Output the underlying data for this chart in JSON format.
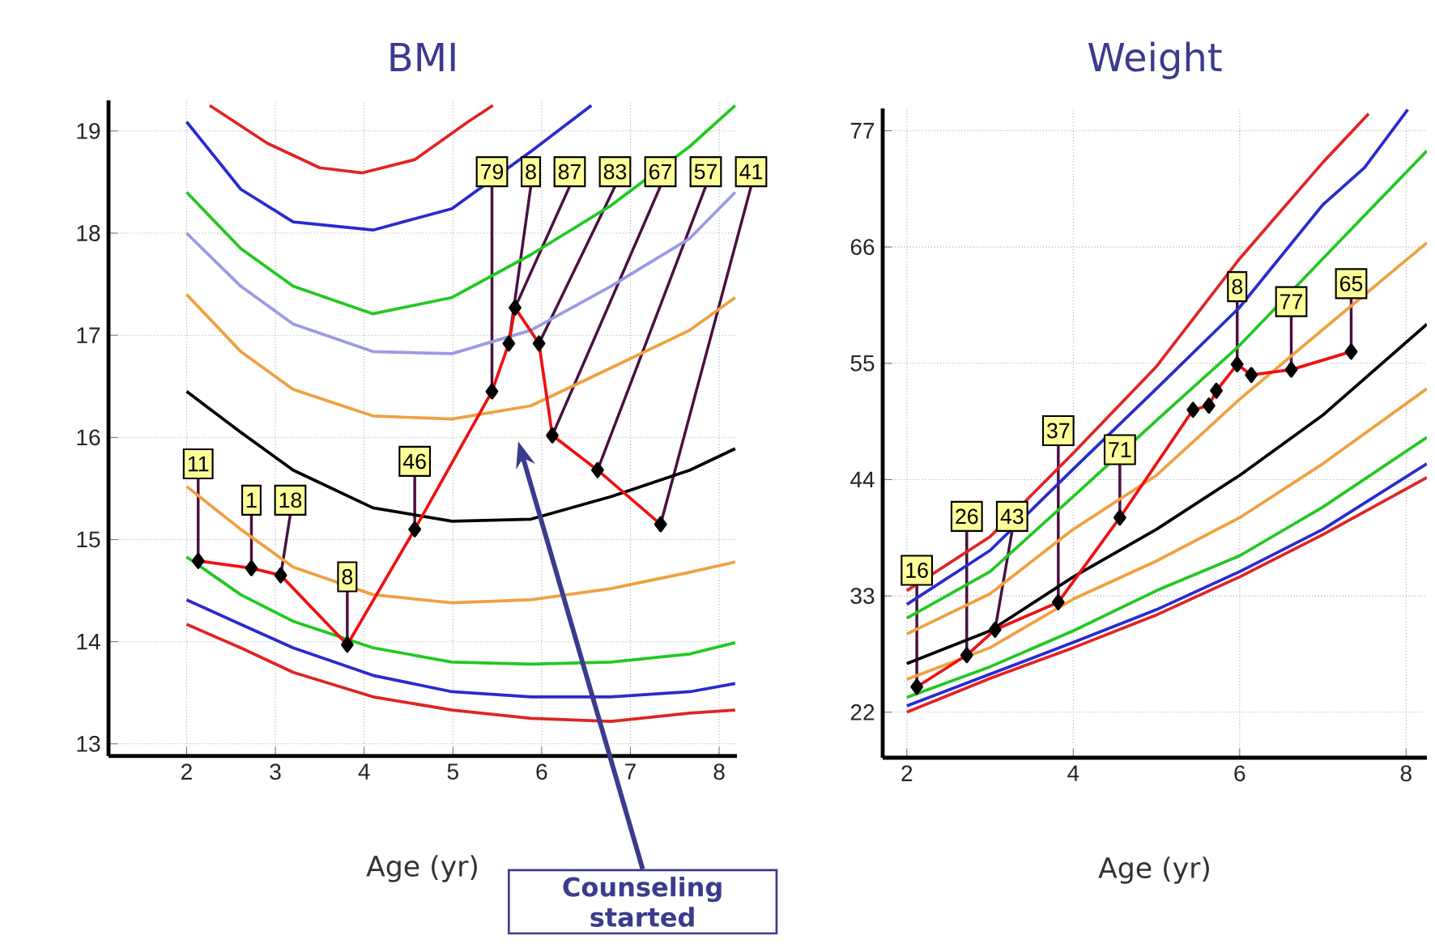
{
  "chart_data": [
    {
      "type": "line",
      "title": "BMI",
      "xlabel": "Age (yr)",
      "xlim": [
        1.12,
        8.2
      ],
      "ylim": [
        12.88,
        19.3
      ],
      "xticks": [
        2,
        3,
        4,
        5,
        6,
        7,
        8
      ],
      "yticks": [
        13,
        14,
        15,
        16,
        17,
        18,
        19
      ],
      "grid": true,
      "annotations": [
        {
          "text": "11",
          "x": 2.13,
          "y": 14.79
        },
        {
          "text": "1",
          "x": 2.73,
          "y": 14.72
        },
        {
          "text": "18",
          "x": 3.06,
          "y": 14.65
        },
        {
          "text": "8",
          "x": 3.81,
          "y": 13.97
        },
        {
          "text": "46",
          "x": 4.57,
          "y": 15.1
        },
        {
          "text": "79",
          "x": 5.44,
          "y": 16.45
        },
        {
          "text": "8",
          "x": 5.63,
          "y": 16.92
        },
        {
          "text": "87",
          "x": 5.7,
          "y": 17.27
        },
        {
          "text": "83",
          "x": 5.97,
          "y": 16.92
        },
        {
          "text": "67",
          "x": 6.12,
          "y": 16.02
        },
        {
          "text": "57",
          "x": 6.63,
          "y": 15.68
        },
        {
          "text": "41",
          "x": 7.34,
          "y": 15.15
        },
        "Counseling started"
      ],
      "series": [
        {
          "color": "#e02424",
          "x": [
            2.26,
            2.91,
            3.5,
            3.98,
            4.57,
            5.17,
            5.45
          ],
          "values": [
            19.25,
            18.88,
            18.64,
            18.59,
            18.72,
            19.09,
            19.25
          ]
        },
        {
          "color": "#2a2ad0",
          "x": [
            2.0,
            2.61,
            3.2,
            4.1,
            4.99,
            5.88,
            6.56
          ],
          "values": [
            19.09,
            18.43,
            18.11,
            18.03,
            18.24,
            18.8,
            19.25
          ]
        },
        {
          "color": "#22c822",
          "x": [
            2.0,
            2.61,
            3.2,
            4.1,
            4.99,
            5.88,
            6.78,
            7.67,
            8.18
          ],
          "values": [
            18.4,
            17.85,
            17.48,
            17.21,
            17.37,
            17.79,
            18.27,
            18.85,
            19.25
          ]
        },
        {
          "color": "#9a9ae6",
          "x": [
            2.0,
            2.61,
            3.2,
            4.1,
            4.99,
            5.88,
            6.78,
            7.67,
            8.18
          ],
          "values": [
            18.0,
            17.48,
            17.11,
            16.84,
            16.82,
            17.05,
            17.48,
            17.95,
            18.4
          ]
        },
        {
          "color": "#f0a040",
          "x": [
            2.0,
            2.61,
            3.2,
            4.1,
            4.99,
            5.88,
            6.78,
            7.67,
            8.18
          ],
          "values": [
            17.4,
            16.84,
            16.47,
            16.21,
            16.18,
            16.31,
            16.68,
            17.05,
            17.37
          ]
        },
        {
          "color": "#000000",
          "x": [
            2.0,
            2.61,
            3.2,
            4.1,
            4.99,
            5.88,
            6.78,
            7.67,
            8.18
          ],
          "values": [
            16.45,
            16.05,
            15.68,
            15.31,
            15.18,
            15.2,
            15.42,
            15.68,
            15.89
          ]
        },
        {
          "color": "#f0a040",
          "x": [
            2.0,
            2.61,
            3.2,
            4.1,
            4.99,
            5.88,
            6.78,
            7.67,
            8.18
          ],
          "values": [
            15.52,
            15.1,
            14.73,
            14.46,
            14.38,
            14.41,
            14.52,
            14.68,
            14.78
          ]
        },
        {
          "color": "#22c822",
          "x": [
            2.0,
            2.61,
            3.2,
            4.1,
            4.99,
            5.88,
            6.78,
            7.67,
            8.18
          ],
          "values": [
            14.83,
            14.46,
            14.2,
            13.94,
            13.8,
            13.78,
            13.8,
            13.88,
            13.99
          ]
        },
        {
          "color": "#2a2ad0",
          "x": [
            2.0,
            2.61,
            3.2,
            4.1,
            4.99,
            5.88,
            6.78,
            7.67,
            8.18
          ],
          "values": [
            14.41,
            14.17,
            13.94,
            13.67,
            13.51,
            13.46,
            13.46,
            13.51,
            13.59
          ]
        },
        {
          "color": "#e02424",
          "x": [
            2.0,
            2.61,
            3.2,
            4.1,
            4.99,
            5.88,
            6.78,
            7.67,
            8.18
          ],
          "values": [
            14.17,
            13.94,
            13.7,
            13.46,
            13.33,
            13.25,
            13.22,
            13.3,
            13.33
          ]
        },
        {
          "color": "#ee1111",
          "marker": "diamond",
          "x": [
            2.13,
            2.73,
            3.06,
            3.81,
            4.57,
            5.44,
            5.63,
            5.7,
            5.97,
            6.12,
            6.63,
            7.34
          ],
          "values": [
            14.79,
            14.72,
            14.65,
            13.97,
            15.1,
            16.45,
            16.92,
            17.27,
            16.92,
            16.02,
            15.68,
            15.15
          ]
        }
      ]
    },
    {
      "type": "line",
      "title": "Weight",
      "xlabel": "Age (yr)",
      "xlim": [
        1.71,
        8.25
      ],
      "ylim": [
        17.7,
        79.1
      ],
      "xticks": [
        2,
        4,
        6,
        8
      ],
      "yticks": [
        22,
        33,
        44,
        55,
        66,
        77
      ],
      "grid": true,
      "annotations": [
        {
          "text": "16",
          "x": 2.12,
          "y": 24.4
        },
        {
          "text": "26",
          "x": 2.72,
          "y": 27.4
        },
        {
          "text": "43",
          "x": 3.06,
          "y": 29.8
        },
        {
          "text": "37",
          "x": 3.82,
          "y": 32.4
        },
        {
          "text": "71",
          "x": 4.56,
          "y": 40.4
        },
        {
          "text": "8",
          "x": 5.97,
          "y": 54.9
        },
        {
          "text": "77",
          "x": 6.62,
          "y": 54.4
        },
        {
          "text": "65",
          "x": 7.34,
          "y": 56.1
        }
      ],
      "series": [
        {
          "color": "#e02424",
          "x": [
            2,
            3,
            4,
            5,
            6,
            7,
            7.55
          ],
          "values": [
            33.5,
            38.6,
            46.5,
            54.7,
            64.9,
            74.0,
            78.6
          ]
        },
        {
          "color": "#2a2ad0",
          "x": [
            2,
            3,
            4,
            5,
            6,
            7,
            7.5,
            8.02
          ],
          "values": [
            32.2,
            37.3,
            45.0,
            52.6,
            60.3,
            70.0,
            73.5,
            79.0
          ]
        },
        {
          "color": "#22c822",
          "x": [
            2,
            3,
            4,
            5,
            6,
            7,
            8.25
          ],
          "values": [
            30.9,
            35.3,
            42.4,
            49.6,
            56.7,
            64.9,
            75.1
          ]
        },
        {
          "color": "#f0a040",
          "x": [
            2,
            3,
            4,
            5,
            6,
            7,
            8.25
          ],
          "values": [
            29.4,
            33.2,
            39.3,
            44.4,
            51.6,
            58.2,
            66.4
          ]
        },
        {
          "color": "#000000",
          "x": [
            2,
            3,
            4,
            5,
            6,
            7,
            8.25
          ],
          "values": [
            26.6,
            29.7,
            34.8,
            39.3,
            44.4,
            50.1,
            58.7
          ]
        },
        {
          "color": "#f0a040",
          "x": [
            2,
            3,
            4,
            5,
            6,
            7,
            8.25
          ],
          "values": [
            25.1,
            28.1,
            32.7,
            36.3,
            40.4,
            45.5,
            52.6
          ]
        },
        {
          "color": "#22c822",
          "x": [
            2,
            3,
            4,
            5,
            6,
            7,
            8.25
          ],
          "values": [
            23.4,
            26.3,
            29.7,
            33.5,
            36.8,
            41.4,
            48.0
          ]
        },
        {
          "color": "#2a2ad0",
          "x": [
            2,
            3,
            4,
            5,
            6,
            7,
            8.25
          ],
          "values": [
            22.6,
            25.6,
            28.6,
            31.7,
            35.3,
            39.3,
            45.5
          ]
        },
        {
          "color": "#e02424",
          "x": [
            2,
            3,
            4,
            5,
            6,
            7,
            8.25
          ],
          "values": [
            22.0,
            25.2,
            28.1,
            31.2,
            34.8,
            38.8,
            44.2
          ]
        },
        {
          "color": "#ee1111",
          "marker": "diamond",
          "x": [
            2.12,
            2.72,
            3.06,
            3.82,
            4.56,
            5.44,
            5.63,
            5.72,
            5.97,
            6.14,
            6.62,
            7.34
          ],
          "values": [
            24.4,
            27.4,
            29.8,
            32.4,
            40.4,
            50.6,
            51.0,
            52.4,
            54.9,
            53.9,
            54.4,
            56.1
          ]
        }
      ]
    }
  ]
}
